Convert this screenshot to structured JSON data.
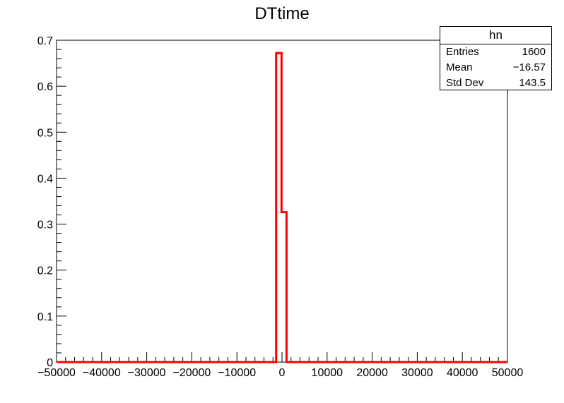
{
  "chart_data": {
    "type": "histogram",
    "title": "DTtime",
    "xlim": [
      -50000,
      50000
    ],
    "ylim": [
      0,
      0.7
    ],
    "x_ticks": [
      -50000,
      -40000,
      -30000,
      -20000,
      -10000,
      0,
      10000,
      20000,
      30000,
      40000,
      50000
    ],
    "y_ticks": [
      0,
      0.1,
      0.2,
      0.3,
      0.4,
      0.5,
      0.6,
      0.7
    ],
    "grid": false,
    "series": [
      {
        "color": "#ff0000",
        "bins": [
          {
            "x0": -50000,
            "x1": -1300,
            "y": 0
          },
          {
            "x0": -1300,
            "x1": -100,
            "y": 0.672
          },
          {
            "x0": -100,
            "x1": 1000,
            "y": 0.326
          },
          {
            "x0": 1000,
            "x1": 50000,
            "y": 0
          }
        ]
      }
    ]
  },
  "stats": {
    "name": "hn",
    "rows": [
      {
        "label": "Entries",
        "value": "1600"
      },
      {
        "label": "Mean",
        "value": "−16.57"
      },
      {
        "label": "Std Dev",
        "value": "143.5"
      }
    ]
  }
}
